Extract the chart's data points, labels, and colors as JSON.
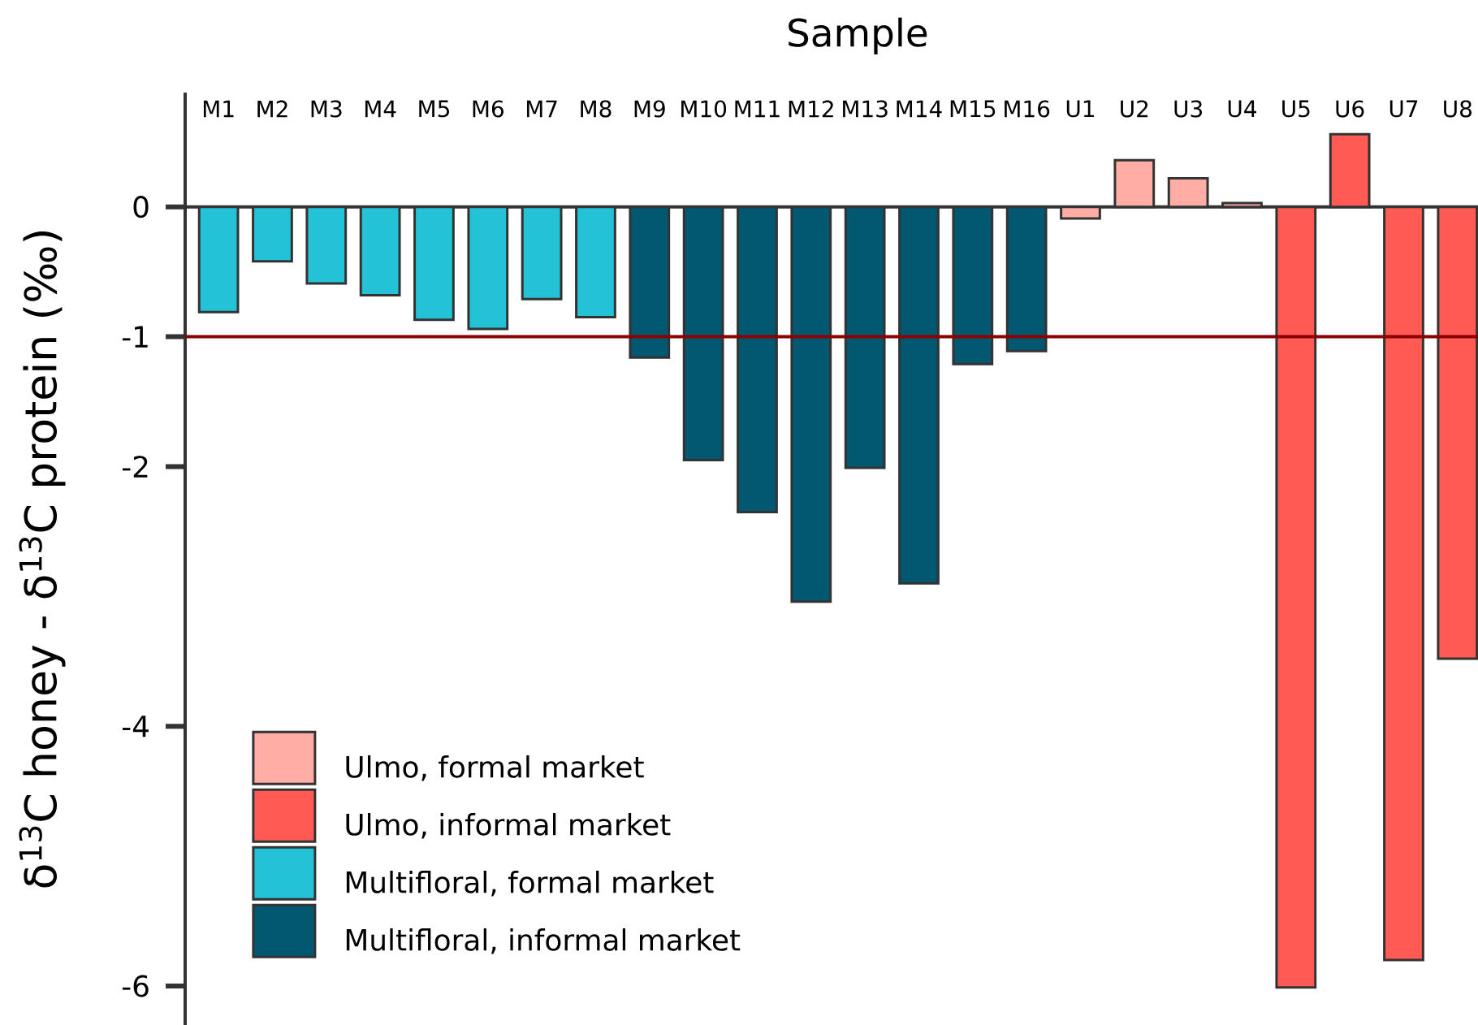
{
  "chart_data": {
    "type": "bar",
    "xlabel": "Sample",
    "ylabel": "δ$^{13}$C honey - δ$^{13}$C protein (‰)",
    "categories": [
      "M1",
      "M2",
      "M3",
      "M4",
      "M5",
      "M6",
      "M7",
      "M8",
      "M9",
      "M10",
      "M11",
      "M12",
      "M13",
      "M14",
      "M15",
      "M16",
      "U1",
      "U2",
      "U3",
      "U4",
      "U5",
      "U6",
      "U7",
      "U8"
    ],
    "series": [
      {
        "name": "Ulmo, formal market",
        "color": "#ffada5",
        "values": [
          null,
          null,
          null,
          null,
          null,
          null,
          null,
          null,
          null,
          null,
          null,
          null,
          null,
          null,
          null,
          null,
          -0.09,
          0.36,
          0.22,
          0.03,
          null,
          null,
          null,
          null
        ]
      },
      {
        "name": "Ulmo, informal market",
        "color": "#ff5b54",
        "values": [
          null,
          null,
          null,
          null,
          null,
          null,
          null,
          null,
          null,
          null,
          null,
          null,
          null,
          null,
          null,
          null,
          null,
          null,
          null,
          null,
          -6.01,
          0.56,
          -5.8,
          -3.48
        ]
      },
      {
        "name": "Multifloral, formal market",
        "color": "#23c2d6",
        "values": [
          -0.81,
          -0.42,
          -0.59,
          -0.68,
          -0.87,
          -0.94,
          -0.71,
          -0.85,
          null,
          null,
          null,
          null,
          null,
          null,
          null,
          null,
          null,
          null,
          null,
          null,
          null,
          null,
          null,
          null
        ]
      },
      {
        "name": "Multifloral, informal market",
        "color": "#015870",
        "values": [
          null,
          null,
          null,
          null,
          null,
          null,
          null,
          null,
          -1.16,
          -1.95,
          -2.35,
          -3.04,
          -2.01,
          -2.9,
          -1.21,
          -1.11,
          null,
          null,
          null,
          null,
          null,
          null,
          null,
          null
        ]
      }
    ],
    "ylim": [
      -6.3,
      0.88
    ],
    "yticks": [
      0,
      -1,
      -2,
      -4,
      -6
    ],
    "ref_lines": [
      {
        "axis": "y",
        "value": -1,
        "color": "#8b0000"
      }
    ],
    "legend": "bottom left"
  }
}
